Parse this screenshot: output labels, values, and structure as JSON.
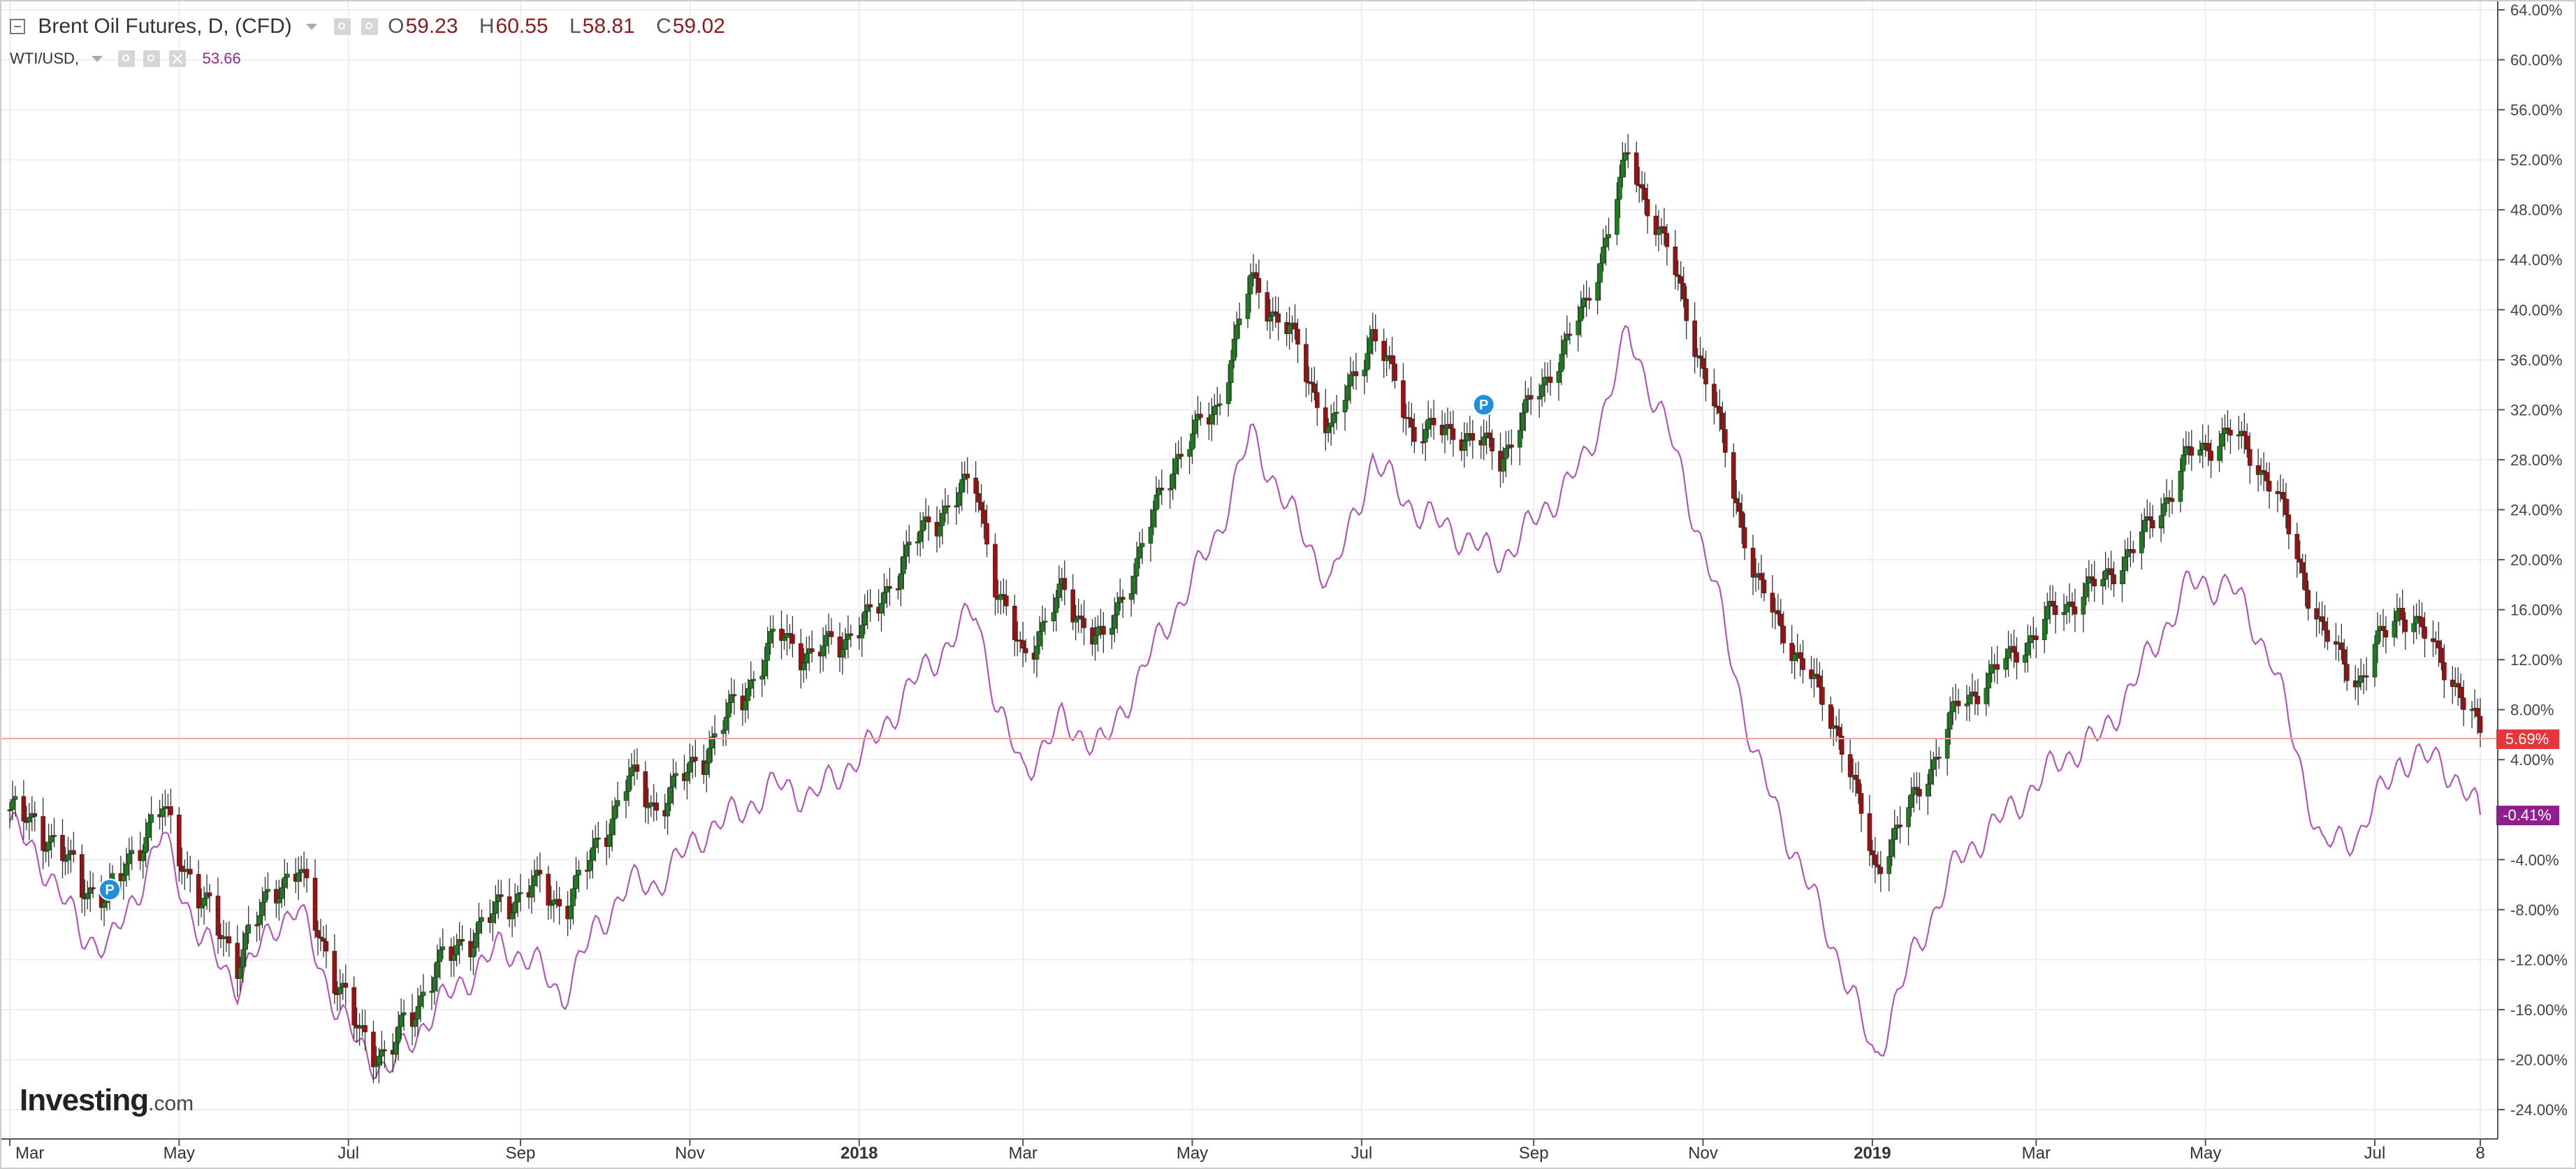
{
  "legend": {
    "main_title": "Brent Oil Futures, D, (CFD)",
    "open_label": "O",
    "open_value": "59.23",
    "high_label": "H",
    "high_value": "60.55",
    "low_label": "L",
    "low_value": "58.81",
    "close_label": "C",
    "close_value": "59.02",
    "compare_title": "WTI/USD,",
    "compare_value": "53.66"
  },
  "logo": {
    "main": "Investing",
    "suffix": ".com"
  },
  "colors": {
    "up": "#1e7b1e",
    "down": "#9b1010",
    "wick": "#333333",
    "wti_line": "#b057b8",
    "last_price": "#e8353a",
    "wti_badge": "#8e1f8e",
    "grid": "#eeeeee",
    "axis": "#555555"
  },
  "chart_data": {
    "type": "line",
    "title": "Brent Oil Futures, D, (CFD)",
    "xlabel": "",
    "ylabel": "",
    "y_axis": {
      "unit": "% change",
      "position": "right",
      "ylim": [
        -24,
        64
      ],
      "ticks": [
        "64.00%",
        "60.00%",
        "56.00%",
        "52.00%",
        "48.00%",
        "44.00%",
        "40.00%",
        "36.00%",
        "32.00%",
        "28.00%",
        "24.00%",
        "20.00%",
        "16.00%",
        "12.00%",
        "8.00%",
        "4.00%",
        "-4.00%",
        "-8.00%",
        "-12.00%",
        "-16.00%",
        "-20.00%",
        "-24.00%"
      ]
    },
    "x_axis": {
      "range": [
        "2017-03-01",
        "2019-08-08"
      ],
      "ticks": [
        "Mar",
        "May",
        "Jul",
        "Sep",
        "Nov",
        "2018",
        "Mar",
        "May",
        "Jul",
        "Sep",
        "Nov",
        "2019",
        "Mar",
        "May",
        "Jul",
        "8"
      ]
    },
    "grid": true,
    "series": [
      {
        "name": "Brent Oil Futures, D, (CFD)",
        "style": "candlestick",
        "last_label": "5.69%",
        "points": [
          [
            "2017-03-01",
            0
          ],
          [
            "2017-03-15",
            -2
          ],
          [
            "2017-03-27",
            -6
          ],
          [
            "2017-04-06",
            -7
          ],
          [
            "2017-04-17",
            -2.5
          ],
          [
            "2017-04-25",
            0
          ],
          [
            "2017-05-08",
            -7
          ],
          [
            "2017-05-22",
            -12
          ],
          [
            "2017-06-05",
            -6
          ],
          [
            "2017-06-13",
            -5
          ],
          [
            "2017-06-27",
            -14
          ],
          [
            "2017-07-05",
            -18
          ],
          [
            "2017-07-15",
            -20
          ],
          [
            "2017-08-01",
            -13
          ],
          [
            "2017-08-15",
            -10
          ],
          [
            "2017-08-25",
            -8
          ],
          [
            "2017-09-05",
            -6
          ],
          [
            "2017-09-16",
            -8
          ],
          [
            "2017-09-27",
            -4
          ],
          [
            "2017-10-10",
            2.5
          ],
          [
            "2017-10-20",
            0
          ],
          [
            "2017-11-05",
            4
          ],
          [
            "2017-11-20",
            9
          ],
          [
            "2017-12-03",
            14
          ],
          [
            "2017-12-15",
            12
          ],
          [
            "2018-01-05",
            15
          ],
          [
            "2018-01-20",
            21
          ],
          [
            "2018-02-01",
            24
          ],
          [
            "2018-02-12",
            26
          ],
          [
            "2018-02-20",
            17
          ],
          [
            "2018-03-01",
            12
          ],
          [
            "2018-03-15",
            17
          ],
          [
            "2018-03-30",
            13
          ],
          [
            "2018-04-15",
            22
          ],
          [
            "2018-04-25",
            28
          ],
          [
            "2018-05-10",
            32
          ],
          [
            "2018-05-22",
            42
          ],
          [
            "2018-06-05",
            38
          ],
          [
            "2018-06-20",
            30
          ],
          [
            "2018-07-05",
            38
          ],
          [
            "2018-07-20",
            30
          ],
          [
            "2018-08-05",
            30
          ],
          [
            "2018-08-20",
            28
          ],
          [
            "2018-09-05",
            34
          ],
          [
            "2018-09-20",
            40
          ],
          [
            "2018-10-05",
            52
          ],
          [
            "2018-10-20",
            44
          ],
          [
            "2018-11-05",
            32
          ],
          [
            "2018-11-20",
            18
          ],
          [
            "2018-12-05",
            12
          ],
          [
            "2018-12-20",
            6
          ],
          [
            "2019-01-02",
            -5
          ],
          [
            "2019-01-15",
            0
          ],
          [
            "2019-02-01",
            8
          ],
          [
            "2019-02-20",
            12
          ],
          [
            "2019-03-10",
            16
          ],
          [
            "2019-03-25",
            18
          ],
          [
            "2019-04-10",
            22
          ],
          [
            "2019-04-25",
            28
          ],
          [
            "2019-05-10",
            30
          ],
          [
            "2019-05-25",
            26
          ],
          [
            "2019-06-12",
            14
          ],
          [
            "2019-06-25",
            10
          ],
          [
            "2019-07-10",
            16
          ],
          [
            "2019-07-25",
            12
          ],
          [
            "2019-08-08",
            5.69
          ]
        ]
      },
      {
        "name": "WTI/USD",
        "style": "line",
        "last_label": "-0.41%",
        "points": [
          [
            "2017-03-01",
            -1
          ],
          [
            "2017-03-15",
            -5
          ],
          [
            "2017-03-27",
            -10
          ],
          [
            "2017-04-06",
            -11
          ],
          [
            "2017-04-17",
            -6
          ],
          [
            "2017-04-25",
            -2
          ],
          [
            "2017-05-08",
            -10
          ],
          [
            "2017-05-22",
            -14
          ],
          [
            "2017-06-05",
            -9
          ],
          [
            "2017-06-13",
            -8
          ],
          [
            "2017-06-27",
            -16
          ],
          [
            "2017-07-05",
            -19
          ],
          [
            "2017-07-15",
            -21
          ],
          [
            "2017-08-01",
            -16
          ],
          [
            "2017-08-15",
            -13
          ],
          [
            "2017-08-25",
            -11
          ],
          [
            "2017-09-05",
            -12
          ],
          [
            "2017-09-16",
            -15
          ],
          [
            "2017-09-27",
            -10
          ],
          [
            "2017-10-10",
            -6
          ],
          [
            "2017-10-20",
            -6
          ],
          [
            "2017-11-05",
            -2
          ],
          [
            "2017-11-20",
            0
          ],
          [
            "2017-12-03",
            2
          ],
          [
            "2017-12-15",
            1
          ],
          [
            "2018-01-05",
            5
          ],
          [
            "2018-01-20",
            10
          ],
          [
            "2018-02-01",
            13
          ],
          [
            "2018-02-12",
            16
          ],
          [
            "2018-02-20",
            8
          ],
          [
            "2018-03-01",
            3
          ],
          [
            "2018-03-15",
            7
          ],
          [
            "2018-03-30",
            5
          ],
          [
            "2018-04-15",
            12
          ],
          [
            "2018-04-25",
            16
          ],
          [
            "2018-05-10",
            22
          ],
          [
            "2018-05-22",
            30
          ],
          [
            "2018-06-05",
            24
          ],
          [
            "2018-06-20",
            18
          ],
          [
            "2018-07-05",
            28
          ],
          [
            "2018-07-20",
            24
          ],
          [
            "2018-08-05",
            22
          ],
          [
            "2018-08-20",
            20
          ],
          [
            "2018-09-05",
            24
          ],
          [
            "2018-09-20",
            28
          ],
          [
            "2018-10-05",
            38
          ],
          [
            "2018-10-20",
            30
          ],
          [
            "2018-11-05",
            18
          ],
          [
            "2018-11-20",
            4
          ],
          [
            "2018-12-05",
            -4
          ],
          [
            "2018-12-20",
            -12
          ],
          [
            "2019-01-02",
            -20
          ],
          [
            "2019-01-15",
            -12
          ],
          [
            "2019-02-01",
            -4
          ],
          [
            "2019-02-20",
            0
          ],
          [
            "2019-03-10",
            4
          ],
          [
            "2019-03-25",
            6
          ],
          [
            "2019-04-10",
            12
          ],
          [
            "2019-04-25",
            18
          ],
          [
            "2019-05-10",
            18
          ],
          [
            "2019-05-25",
            12
          ],
          [
            "2019-06-12",
            -3
          ],
          [
            "2019-06-25",
            -2
          ],
          [
            "2019-07-10",
            4
          ],
          [
            "2019-07-25",
            4
          ],
          [
            "2019-08-08",
            -0.41
          ]
        ]
      }
    ],
    "markers": [
      {
        "label": "P",
        "date": "2017-04-06",
        "value": -6.4
      },
      {
        "label": "P",
        "date": "2018-08-14",
        "value": 32.4
      }
    ]
  }
}
